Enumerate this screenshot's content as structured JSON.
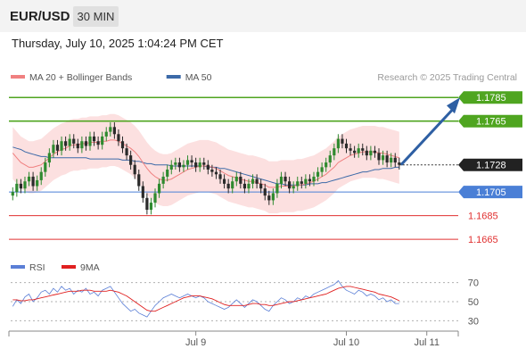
{
  "header": {
    "symbol": "EUR/USD",
    "timeframe": "30 MIN"
  },
  "datetime": "Thursday, July 10, 2025 1:04:24 PM CET",
  "chart_data": {
    "type": "line",
    "legend_main": [
      {
        "name": "MA 20 + Bollinger Bands",
        "color": "#f08080"
      },
      {
        "name": "MA 50",
        "color": "#3c6aa8"
      }
    ],
    "watermark": "Research © 2025 Trading Central",
    "price_axis": {
      "ylim": [
        1.1653,
        1.1795
      ],
      "position": "right"
    },
    "current_price": "1.1728",
    "levels": [
      {
        "label": "1.1785",
        "value": 1.1785,
        "kind": "resistance",
        "color": "#4fa520"
      },
      {
        "label": "1.1765",
        "value": 1.1765,
        "kind": "resistance",
        "color": "#4fa520"
      },
      {
        "label": "1.1705",
        "value": 1.1705,
        "kind": "pivot",
        "color": "#4a7fd6"
      },
      {
        "label": "1.1685",
        "value": 1.1685,
        "kind": "support",
        "color": "#e03030"
      },
      {
        "label": "1.1665",
        "value": 1.1665,
        "kind": "support",
        "color": "#e03030"
      }
    ],
    "price_series": [
      1.1705,
      1.1712,
      1.1708,
      1.1714,
      1.1718,
      1.171,
      1.1715,
      1.1722,
      1.173,
      1.1738,
      1.1745,
      1.174,
      1.1748,
      1.1744,
      1.175,
      1.1746,
      1.1742,
      1.1748,
      1.1744,
      1.1752,
      1.1748,
      1.1745,
      1.1752,
      1.1756,
      1.176,
      1.1754,
      1.1748,
      1.1742,
      1.1736,
      1.1728,
      1.172,
      1.171,
      1.17,
      1.169,
      1.1696,
      1.1704,
      1.1712,
      1.1718,
      1.1724,
      1.1728,
      1.173,
      1.1726,
      1.1728,
      1.1732,
      1.173,
      1.1726,
      1.173,
      1.1728,
      1.1724,
      1.1722,
      1.172,
      1.1716,
      1.1712,
      1.1708,
      1.1714,
      1.1718,
      1.1712,
      1.1708,
      1.1712,
      1.1716,
      1.1712,
      1.1708,
      1.1702,
      1.1698,
      1.1704,
      1.1712,
      1.1718,
      1.1714,
      1.1708,
      1.171,
      1.1714,
      1.1712,
      1.1716,
      1.1714,
      1.1718,
      1.1722,
      1.1726,
      1.173,
      1.1736,
      1.1742,
      1.175,
      1.1746,
      1.1742,
      1.174,
      1.1738,
      1.1742,
      1.174,
      1.1736,
      1.174,
      1.1738,
      1.1732,
      1.1736,
      1.173,
      1.1734,
      1.173,
      1.1728
    ],
    "ma20_series": [
      1.1738,
      1.1734,
      1.173,
      1.1728,
      1.1726,
      1.1726,
      1.1727,
      1.1728,
      1.1731,
      1.1734,
      1.1737,
      1.1739,
      1.1741,
      1.1742,
      1.1744,
      1.1745,
      1.1745,
      1.1746,
      1.1746,
      1.1747,
      1.1747,
      1.1747,
      1.1748,
      1.1748,
      1.1749,
      1.1749,
      1.1748,
      1.1746,
      1.1744,
      1.1742,
      1.1739,
      1.1735,
      1.173,
      1.1725,
      1.1721,
      1.1718,
      1.1716,
      1.1715,
      1.1715,
      1.1716,
      1.1718,
      1.172,
      1.1722,
      1.1724,
      1.1725,
      1.1726,
      1.1727,
      1.1727,
      1.1727,
      1.1726,
      1.1725,
      1.1723,
      1.1721,
      1.1719,
      1.1718,
      1.1717,
      1.1716,
      1.1715,
      1.1714,
      1.1714,
      1.1713,
      1.1712,
      1.1711,
      1.1709,
      1.1709,
      1.1709,
      1.171,
      1.171,
      1.171,
      1.171,
      1.1711,
      1.1711,
      1.1712,
      1.1713,
      1.1714,
      1.1716,
      1.1718,
      1.172,
      1.1723,
      1.1726,
      1.173,
      1.1732,
      1.1734,
      1.1736,
      1.1737,
      1.1738,
      1.1739,
      1.1739,
      1.1739,
      1.1739,
      1.1738,
      1.1738,
      1.1737,
      1.1736,
      1.1735,
      1.1734
    ],
    "ma50_series": [
      1.1743,
      1.1742,
      1.1741,
      1.1739,
      1.1738,
      1.1737,
      1.1736,
      1.1735,
      1.1735,
      1.1734,
      1.1734,
      1.1734,
      1.1734,
      1.1734,
      1.1734,
      1.1734,
      1.1734,
      1.1734,
      1.1734,
      1.1733,
      1.1733,
      1.1733,
      1.1733,
      1.1733,
      1.1733,
      1.1733,
      1.1733,
      1.1732,
      1.1732,
      1.1732,
      1.1731,
      1.1731,
      1.173,
      1.1729,
      1.1729,
      1.1728,
      1.1728,
      1.1728,
      1.1728,
      1.1727,
      1.1727,
      1.1727,
      1.1727,
      1.1727,
      1.1727,
      1.1727,
      1.1727,
      1.1727,
      1.1726,
      1.1726,
      1.1726,
      1.1725,
      1.1725,
      1.1724,
      1.1723,
      1.1722,
      1.1721,
      1.172,
      1.1719,
      1.1718,
      1.1717,
      1.1716,
      1.1715,
      1.1714,
      1.1713,
      1.1712,
      1.1712,
      1.1711,
      1.1711,
      1.1711,
      1.1711,
      1.1711,
      1.1711,
      1.1712,
      1.1712,
      1.1712,
      1.1713,
      1.1713,
      1.1714,
      1.1715,
      1.1716,
      1.1717,
      1.1718,
      1.1719,
      1.172,
      1.1721,
      1.1722,
      1.1722,
      1.1723,
      1.1724,
      1.1724,
      1.1725,
      1.1725,
      1.1725,
      1.1726,
      1.1726
    ],
    "bollinger_width": 0.0022,
    "projection": {
      "from": 1.1728,
      "to": 1.1785,
      "color": "#2e5fa3",
      "direction": "up"
    },
    "rsi_panel": {
      "legend": [
        {
          "name": "RSI",
          "color": "#5b7fd6"
        },
        {
          "name": "9MA",
          "color": "#e02020"
        }
      ],
      "ylim": [
        20,
        80
      ],
      "ticks": [
        "70",
        "50",
        "30"
      ],
      "tick_values": [
        70,
        50,
        30
      ],
      "rsi_series": [
        45,
        52,
        48,
        55,
        58,
        50,
        54,
        60,
        62,
        58,
        64,
        60,
        66,
        62,
        64,
        58,
        62,
        60,
        64,
        58,
        60,
        56,
        62,
        64,
        66,
        60,
        54,
        48,
        44,
        40,
        42,
        38,
        36,
        34,
        40,
        46,
        50,
        54,
        56,
        58,
        56,
        54,
        56,
        58,
        56,
        54,
        56,
        54,
        50,
        48,
        46,
        44,
        42,
        44,
        48,
        52,
        48,
        44,
        48,
        52,
        50,
        46,
        42,
        40,
        46,
        50,
        54,
        52,
        48,
        50,
        54,
        52,
        56,
        54,
        58,
        60,
        62,
        64,
        66,
        68,
        72,
        66,
        62,
        60,
        58,
        62,
        60,
        56,
        58,
        56,
        52,
        54,
        50,
        52,
        48,
        48
      ],
      "ma_series": [
        52,
        52,
        51,
        51,
        52,
        52,
        53,
        54,
        55,
        56,
        57,
        58,
        59,
        60,
        61,
        61,
        61,
        62,
        62,
        62,
        61,
        61,
        61,
        61,
        62,
        61,
        60,
        58,
        56,
        53,
        50,
        47,
        44,
        41,
        40,
        40,
        42,
        44,
        46,
        48,
        50,
        52,
        54,
        55,
        56,
        56,
        56,
        55,
        54,
        53,
        51,
        49,
        47,
        46,
        46,
        46,
        46,
        46,
        47,
        48,
        48,
        47,
        47,
        46,
        46,
        47,
        48,
        49,
        50,
        50,
        51,
        52,
        53,
        54,
        55,
        56,
        57,
        58,
        60,
        62,
        64,
        65,
        66,
        66,
        65,
        64,
        63,
        62,
        61,
        60,
        58,
        57,
        56,
        55,
        53,
        51
      ]
    },
    "x_labels": [
      "Jul 9",
      "Jul 10",
      "Jul 11"
    ],
    "x_label_bar_index": [
      45,
      82,
      109
    ],
    "total_slots": 110
  }
}
